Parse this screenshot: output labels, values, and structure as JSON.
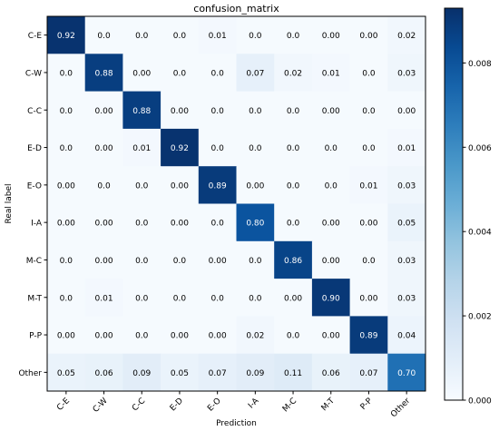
{
  "chart_data": {
    "type": "heatmap",
    "title": "confusion_matrix",
    "xlabel": "Prediction",
    "ylabel": "Real label",
    "x_categories": [
      "C-E",
      "C-W",
      "C-C",
      "E-D",
      "E-O",
      "I-A",
      "M-C",
      "M-T",
      "P-P",
      "Other"
    ],
    "y_categories": [
      "C-E",
      "C-W",
      "C-C",
      "E-D",
      "E-O",
      "I-A",
      "M-C",
      "M-T",
      "P-P",
      "Other"
    ],
    "cell_labels": [
      [
        "0.92",
        "0.0",
        "0.0",
        "0.0",
        "0.01",
        "0.0",
        "0.0",
        "0.00",
        "0.00",
        "0.02"
      ],
      [
        "0.0",
        "0.88",
        "0.00",
        "0.0",
        "0.0",
        "0.07",
        "0.02",
        "0.01",
        "0.0",
        "0.03"
      ],
      [
        "0.0",
        "0.00",
        "0.88",
        "0.00",
        "0.0",
        "0.0",
        "0.0",
        "0.00",
        "0.0",
        "0.00"
      ],
      [
        "0.0",
        "0.00",
        "0.01",
        "0.92",
        "0.0",
        "0.0",
        "0.0",
        "0.0",
        "0.0",
        "0.01"
      ],
      [
        "0.00",
        "0.0",
        "0.0",
        "0.00",
        "0.89",
        "0.00",
        "0.0",
        "0.0",
        "0.01",
        "0.03"
      ],
      [
        "0.00",
        "0.00",
        "0.0",
        "0.00",
        "0.0",
        "0.80",
        "0.0",
        "0.00",
        "0.00",
        "0.05"
      ],
      [
        "0.0",
        "0.00",
        "0.0",
        "0.0",
        "0.00",
        "0.0",
        "0.86",
        "0.00",
        "0.0",
        "0.03"
      ],
      [
        "0.0",
        "0.01",
        "0.0",
        "0.0",
        "0.0",
        "0.0",
        "0.00",
        "0.90",
        "0.00",
        "0.03"
      ],
      [
        "0.00",
        "0.00",
        "0.0",
        "0.00",
        "0.00",
        "0.02",
        "0.0",
        "0.00",
        "0.89",
        "0.04"
      ],
      [
        "0.05",
        "0.06",
        "0.09",
        "0.05",
        "0.07",
        "0.09",
        "0.11",
        "0.06",
        "0.07",
        "0.70"
      ]
    ],
    "colorbar": {
      "range": [
        0,
        0.0093
      ],
      "ticks": [
        "0.000",
        "0.002",
        "0.004",
        "0.006",
        "0.008"
      ],
      "tick_values": [
        0,
        0.002,
        0.004,
        0.006,
        0.008
      ]
    },
    "colormap": "Blues",
    "grid": false,
    "legend": "colorbar-right"
  }
}
